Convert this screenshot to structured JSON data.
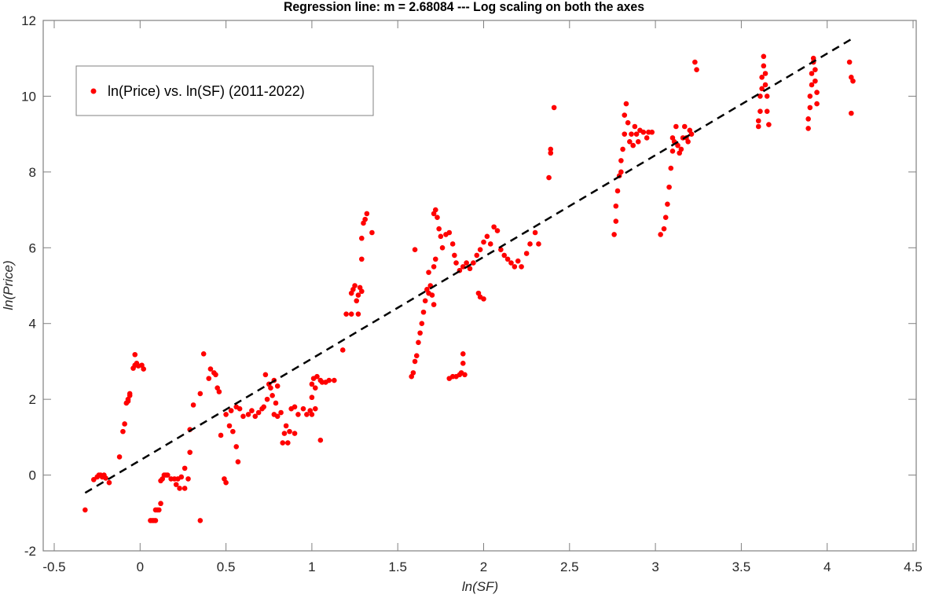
{
  "chart_data": {
    "type": "scatter",
    "title": "Regression line: m = 2.68084 --- Log scaling on both the axes",
    "xlabel": "ln(SF)",
    "ylabel": "ln(Price)",
    "xlim": [
      -0.5,
      4.5
    ],
    "ylim": [
      -2,
      12
    ],
    "xticks": [
      -0.5,
      0,
      0.5,
      1,
      1.5,
      2,
      2.5,
      3,
      3.5,
      4,
      4.5
    ],
    "xtick_labels": [
      "-0.5",
      "0",
      "0.5",
      "1",
      "1.5",
      "2",
      "2.5",
      "3",
      "3.5",
      "4",
      "4.5"
    ],
    "yticks": [
      -2,
      0,
      2,
      4,
      6,
      8,
      10,
      12
    ],
    "ytick_labels": [
      "-2",
      "0",
      "2",
      "4",
      "6",
      "8",
      "10",
      "12"
    ],
    "grid": false,
    "legend": {
      "position": "upper-left",
      "entries": [
        "ln(Price) vs. ln(SF) (2011-2022)"
      ]
    },
    "colors": {
      "points": "#ff0000",
      "regression_line": "#000000",
      "axes": "#808080"
    },
    "regression": {
      "slope": 2.68084,
      "x": [
        -0.32,
        4.15
      ],
      "y": [
        -0.47,
        11.53
      ],
      "style": "dashed"
    },
    "series": [
      {
        "name": "ln(Price) vs. ln(SF) (2011-2022)",
        "marker": "filled-circle",
        "points": [
          [
            -0.32,
            -0.92
          ],
          [
            -0.27,
            -0.12
          ],
          [
            -0.25,
            -0.05
          ],
          [
            -0.24,
            0.0
          ],
          [
            -0.23,
            0.0
          ],
          [
            -0.22,
            -0.05
          ],
          [
            -0.21,
            0.0
          ],
          [
            -0.2,
            -0.08
          ],
          [
            -0.18,
            -0.2
          ],
          [
            -0.12,
            0.48
          ],
          [
            -0.1,
            1.15
          ],
          [
            -0.09,
            1.35
          ],
          [
            -0.08,
            1.9
          ],
          [
            -0.07,
            2.0
          ],
          [
            -0.06,
            2.1
          ],
          [
            -0.07,
            1.95
          ],
          [
            -0.06,
            2.15
          ],
          [
            -0.04,
            2.82
          ],
          [
            -0.03,
            3.18
          ],
          [
            -0.03,
            2.9
          ],
          [
            -0.02,
            2.95
          ],
          [
            -0.01,
            2.88
          ],
          [
            0.01,
            2.9
          ],
          [
            0.02,
            2.8
          ],
          [
            0.06,
            -1.2
          ],
          [
            0.07,
            -1.2
          ],
          [
            0.08,
            -1.2
          ],
          [
            0.09,
            -1.2
          ],
          [
            0.09,
            -0.92
          ],
          [
            0.1,
            -0.92
          ],
          [
            0.11,
            -0.92
          ],
          [
            0.12,
            -0.75
          ],
          [
            0.12,
            -0.15
          ],
          [
            0.13,
            -0.1
          ],
          [
            0.14,
            0.0
          ],
          [
            0.15,
            0.0
          ],
          [
            0.16,
            0.0
          ],
          [
            0.18,
            -0.1
          ],
          [
            0.2,
            -0.1
          ],
          [
            0.21,
            -0.25
          ],
          [
            0.22,
            -0.1
          ],
          [
            0.23,
            -0.35
          ],
          [
            0.24,
            -0.05
          ],
          [
            0.26,
            -0.35
          ],
          [
            0.26,
            0.18
          ],
          [
            0.28,
            -0.1
          ],
          [
            0.29,
            0.6
          ],
          [
            0.29,
            1.2
          ],
          [
            0.31,
            1.85
          ],
          [
            0.35,
            -1.2
          ],
          [
            0.35,
            2.15
          ],
          [
            0.37,
            3.2
          ],
          [
            0.4,
            2.55
          ],
          [
            0.41,
            2.8
          ],
          [
            0.43,
            2.7
          ],
          [
            0.44,
            2.65
          ],
          [
            0.45,
            2.3
          ],
          [
            0.46,
            2.2
          ],
          [
            0.47,
            1.05
          ],
          [
            0.49,
            -0.1
          ],
          [
            0.5,
            -0.2
          ],
          [
            0.5,
            1.6
          ],
          [
            0.52,
            1.3
          ],
          [
            0.54,
            1.15
          ],
          [
            0.56,
            0.75
          ],
          [
            0.57,
            0.35
          ],
          [
            0.53,
            1.7
          ],
          [
            0.56,
            1.8
          ],
          [
            0.58,
            1.75
          ],
          [
            0.6,
            1.55
          ],
          [
            0.63,
            1.6
          ],
          [
            0.65,
            1.7
          ],
          [
            0.67,
            1.55
          ],
          [
            0.69,
            1.65
          ],
          [
            0.71,
            1.75
          ],
          [
            0.72,
            1.8
          ],
          [
            0.73,
            2.65
          ],
          [
            0.74,
            2.0
          ],
          [
            0.75,
            2.4
          ],
          [
            0.76,
            2.3
          ],
          [
            0.77,
            2.1
          ],
          [
            0.78,
            2.5
          ],
          [
            0.79,
            1.9
          ],
          [
            0.8,
            2.35
          ],
          [
            0.78,
            1.6
          ],
          [
            0.8,
            1.55
          ],
          [
            0.82,
            1.65
          ],
          [
            0.83,
            0.85
          ],
          [
            0.84,
            1.1
          ],
          [
            0.85,
            1.3
          ],
          [
            0.86,
            0.85
          ],
          [
            0.87,
            1.15
          ],
          [
            0.9,
            1.1
          ],
          [
            0.88,
            1.75
          ],
          [
            0.9,
            1.8
          ],
          [
            0.92,
            1.6
          ],
          [
            0.95,
            1.75
          ],
          [
            0.97,
            1.6
          ],
          [
            0.99,
            1.7
          ],
          [
            1.0,
            1.6
          ],
          [
            1.02,
            1.75
          ],
          [
            1.0,
            2.4
          ],
          [
            1.01,
            2.55
          ],
          [
            1.02,
            2.3
          ],
          [
            1.03,
            2.6
          ],
          [
            1.05,
            2.5
          ],
          [
            1.06,
            2.45
          ],
          [
            1.08,
            2.45
          ],
          [
            1.1,
            2.5
          ],
          [
            1.13,
            2.5
          ],
          [
            1.05,
            0.92
          ],
          [
            1.0,
            2.05
          ],
          [
            1.18,
            3.3
          ],
          [
            1.2,
            4.25
          ],
          [
            1.23,
            4.8
          ],
          [
            1.24,
            4.9
          ],
          [
            1.25,
            5.0
          ],
          [
            1.26,
            4.6
          ],
          [
            1.27,
            4.75
          ],
          [
            1.28,
            4.95
          ],
          [
            1.29,
            4.85
          ],
          [
            1.29,
            5.7
          ],
          [
            1.29,
            6.25
          ],
          [
            1.3,
            6.65
          ],
          [
            1.31,
            6.75
          ],
          [
            1.32,
            6.9
          ],
          [
            1.35,
            6.4
          ],
          [
            1.23,
            4.25
          ],
          [
            1.27,
            4.25
          ],
          [
            1.58,
            2.6
          ],
          [
            1.59,
            2.7
          ],
          [
            1.6,
            3.0
          ],
          [
            1.61,
            3.15
          ],
          [
            1.62,
            3.5
          ],
          [
            1.63,
            3.75
          ],
          [
            1.64,
            4.0
          ],
          [
            1.65,
            4.3
          ],
          [
            1.66,
            4.6
          ],
          [
            1.67,
            4.9
          ],
          [
            1.68,
            4.8
          ],
          [
            1.69,
            5.0
          ],
          [
            1.7,
            4.75
          ],
          [
            1.71,
            4.5
          ],
          [
            1.6,
            5.95
          ],
          [
            1.68,
            5.35
          ],
          [
            1.71,
            5.5
          ],
          [
            1.72,
            5.7
          ],
          [
            1.71,
            6.9
          ],
          [
            1.72,
            7.0
          ],
          [
            1.73,
            6.8
          ],
          [
            1.74,
            6.5
          ],
          [
            1.75,
            6.3
          ],
          [
            1.76,
            6.0
          ],
          [
            1.78,
            6.35
          ],
          [
            1.8,
            6.4
          ],
          [
            1.82,
            6.1
          ],
          [
            1.83,
            5.8
          ],
          [
            1.84,
            5.6
          ],
          [
            1.86,
            5.4
          ],
          [
            1.88,
            5.5
          ],
          [
            1.9,
            5.6
          ],
          [
            1.92,
            5.45
          ],
          [
            1.94,
            5.6
          ],
          [
            1.96,
            5.8
          ],
          [
            1.98,
            5.95
          ],
          [
            2.0,
            6.15
          ],
          [
            2.02,
            6.3
          ],
          [
            2.04,
            6.1
          ],
          [
            2.06,
            6.55
          ],
          [
            2.08,
            6.45
          ],
          [
            2.1,
            5.95
          ],
          [
            2.12,
            5.8
          ],
          [
            2.14,
            5.7
          ],
          [
            2.16,
            5.6
          ],
          [
            2.18,
            5.5
          ],
          [
            2.2,
            5.65
          ],
          [
            2.22,
            5.5
          ],
          [
            2.25,
            5.85
          ],
          [
            2.27,
            6.1
          ],
          [
            2.3,
            6.4
          ],
          [
            2.32,
            6.1
          ],
          [
            1.8,
            2.55
          ],
          [
            1.82,
            2.6
          ],
          [
            1.84,
            2.6
          ],
          [
            1.86,
            2.65
          ],
          [
            1.87,
            2.7
          ],
          [
            1.88,
            2.95
          ],
          [
            1.88,
            3.2
          ],
          [
            1.89,
            2.65
          ],
          [
            1.97,
            4.8
          ],
          [
            1.98,
            4.7
          ],
          [
            2.0,
            4.65
          ],
          [
            2.38,
            7.85
          ],
          [
            2.39,
            8.6
          ],
          [
            2.39,
            8.5
          ],
          [
            2.41,
            9.7
          ],
          [
            2.76,
            6.35
          ],
          [
            2.77,
            6.7
          ],
          [
            2.77,
            7.1
          ],
          [
            2.78,
            7.5
          ],
          [
            2.79,
            7.9
          ],
          [
            2.8,
            8.3
          ],
          [
            2.8,
            8.0
          ],
          [
            2.81,
            8.6
          ],
          [
            2.82,
            9.0
          ],
          [
            2.82,
            9.5
          ],
          [
            2.83,
            9.8
          ],
          [
            2.84,
            9.3
          ],
          [
            2.85,
            8.8
          ],
          [
            2.86,
            9.0
          ],
          [
            2.87,
            8.7
          ],
          [
            2.88,
            9.2
          ],
          [
            2.89,
            9.0
          ],
          [
            2.9,
            8.8
          ],
          [
            2.91,
            9.1
          ],
          [
            2.93,
            9.05
          ],
          [
            2.95,
            8.9
          ],
          [
            2.96,
            9.05
          ],
          [
            2.98,
            9.05
          ],
          [
            3.03,
            6.35
          ],
          [
            3.05,
            6.5
          ],
          [
            3.06,
            6.8
          ],
          [
            3.07,
            7.15
          ],
          [
            3.08,
            7.6
          ],
          [
            3.09,
            8.1
          ],
          [
            3.1,
            8.55
          ],
          [
            3.1,
            8.9
          ],
          [
            3.11,
            8.8
          ],
          [
            3.12,
            9.2
          ],
          [
            3.13,
            8.7
          ],
          [
            3.14,
            8.5
          ],
          [
            3.15,
            8.6
          ],
          [
            3.16,
            8.9
          ],
          [
            3.17,
            9.2
          ],
          [
            3.18,
            8.9
          ],
          [
            3.19,
            8.8
          ],
          [
            3.2,
            9.1
          ],
          [
            3.21,
            9.0
          ],
          [
            3.23,
            10.9
          ],
          [
            3.24,
            10.7
          ],
          [
            3.6,
            9.2
          ],
          [
            3.6,
            9.35
          ],
          [
            3.61,
            9.6
          ],
          [
            3.61,
            10.0
          ],
          [
            3.62,
            10.2
          ],
          [
            3.62,
            10.5
          ],
          [
            3.63,
            10.8
          ],
          [
            3.63,
            11.05
          ],
          [
            3.64,
            10.6
          ],
          [
            3.64,
            10.3
          ],
          [
            3.65,
            10.0
          ],
          [
            3.65,
            9.6
          ],
          [
            3.66,
            9.25
          ],
          [
            3.89,
            9.15
          ],
          [
            3.89,
            9.4
          ],
          [
            3.9,
            9.7
          ],
          [
            3.9,
            10.0
          ],
          [
            3.91,
            10.3
          ],
          [
            3.91,
            10.6
          ],
          [
            3.92,
            10.9
          ],
          [
            3.92,
            11.0
          ],
          [
            3.93,
            10.7
          ],
          [
            3.93,
            10.4
          ],
          [
            3.94,
            10.1
          ],
          [
            3.94,
            9.8
          ],
          [
            4.13,
            10.9
          ],
          [
            4.14,
            10.5
          ],
          [
            4.15,
            10.4
          ],
          [
            4.14,
            9.55
          ]
        ]
      }
    ]
  }
}
